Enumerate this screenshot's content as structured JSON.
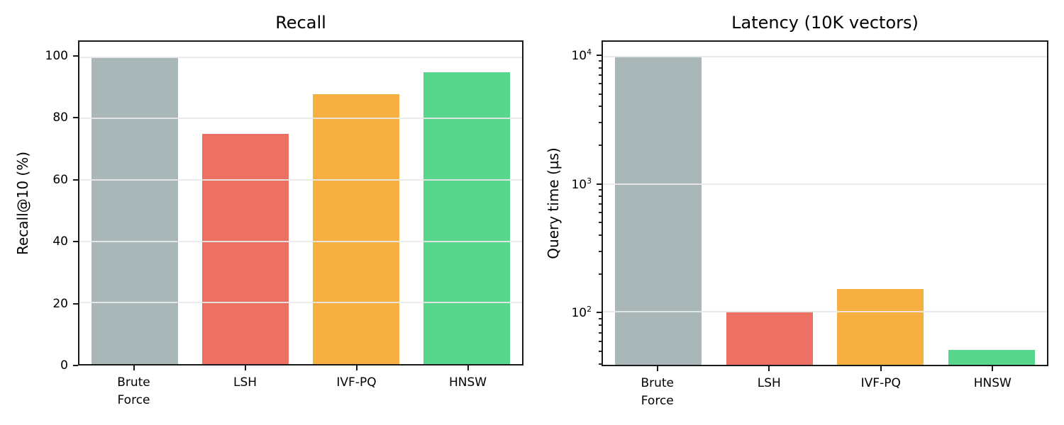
{
  "figure": {
    "background": "#ffffff",
    "spine_color": "#1a1a1a",
    "grid_color": "#e9e9e9",
    "text_color": "#000000"
  },
  "chart_data": [
    {
      "type": "bar",
      "title": "Recall",
      "ylabel": "Recall@10 (%)",
      "categories": [
        "Brute\nForce",
        "LSH",
        "IVF-PQ",
        "HNSW"
      ],
      "values": [
        100,
        75,
        88,
        95
      ],
      "bar_colors": [
        "#aab7b8",
        "#ec7063",
        "#f5b041",
        "#58d68d"
      ],
      "yscale": "linear",
      "ylim": [
        0,
        105
      ],
      "yticks": [
        0,
        20,
        40,
        60,
        80,
        100
      ],
      "ytick_labels": [
        "0",
        "20",
        "40",
        "60",
        "80",
        "100"
      ],
      "grid": true,
      "legend": false
    },
    {
      "type": "bar",
      "title": "Latency (10K vectors)",
      "ylabel": "Query time (µs)",
      "categories": [
        "Brute\nForce",
        "LSH",
        "IVF-PQ",
        "HNSW"
      ],
      "values": [
        10000,
        100,
        150,
        50
      ],
      "bar_colors": [
        "#aab7b8",
        "#ec7063",
        "#f5b041",
        "#58d68d"
      ],
      "yscale": "log",
      "ylim": [
        38.4,
        13030
      ],
      "yticks": [
        100,
        1000,
        10000
      ],
      "ytick_labels": [
        "10^2",
        "10^3",
        "10^4"
      ],
      "yticks_minor": [
        40,
        50,
        60,
        70,
        80,
        90,
        200,
        300,
        400,
        500,
        600,
        700,
        800,
        900,
        2000,
        3000,
        4000,
        5000,
        6000,
        7000,
        8000,
        9000
      ],
      "grid": true,
      "legend": false
    }
  ]
}
